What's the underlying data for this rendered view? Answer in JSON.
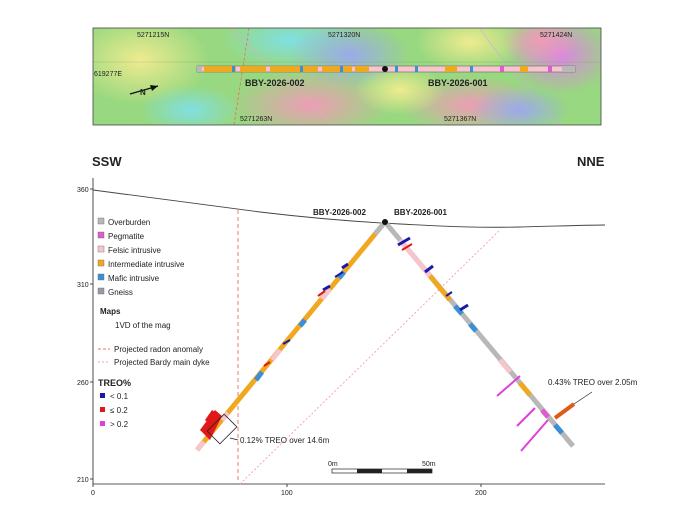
{
  "map": {
    "northings": [
      "5271215N",
      "5271320N",
      "5271424N",
      "5271263N",
      "5271367N"
    ],
    "easting": "619277E",
    "hole_labels": [
      "BBY-2026-002",
      "BBY-2026-001"
    ],
    "north_arrow": "N"
  },
  "section": {
    "direction_left": "SSW",
    "direction_right": "NNE",
    "y_ticks": [
      "360",
      "310",
      "260",
      "210"
    ],
    "x_ticks": [
      "0",
      "100",
      "200"
    ],
    "collar_labels": [
      "BBY-2026-002",
      "BBY-2026-001"
    ],
    "scale_bar": {
      "start": "0m",
      "end": "50m"
    },
    "annotations": [
      "0.12% TREO over 14.6m",
      "0.43% TREO over 2.05m"
    ]
  },
  "legend": {
    "lithology": [
      {
        "label": "Overburden",
        "color": "#b8b8b8"
      },
      {
        "label": "Pegmatite",
        "color": "#e05ad0"
      },
      {
        "label": "Felsic intrusive",
        "color": "#f7c6cc"
      },
      {
        "label": "Intermediate intrusive",
        "color": "#f0a820"
      },
      {
        "label": "Mafic intrusive",
        "color": "#3a8fd6"
      },
      {
        "label": "Gneiss",
        "color": "#9a9aa6"
      }
    ],
    "maps_title": "Maps",
    "maps_item": "1VD of the mag",
    "lines": [
      {
        "label": "Projected radon anomaly",
        "color": "#e8705a"
      },
      {
        "label": "Projected Bardy main dyke",
        "color": "#f0a0a8"
      }
    ],
    "treo_title": "TREO%",
    "treo": [
      {
        "label": "< 0.1",
        "color": "#1a1aa8"
      },
      {
        "label": "≤ 0.2",
        "color": "#e01818"
      },
      {
        "label": "> 0.2",
        "color": "#e040d8"
      }
    ]
  }
}
